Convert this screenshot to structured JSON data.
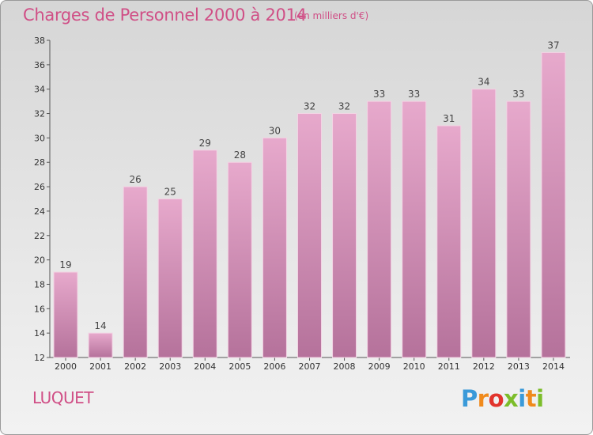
{
  "header": {
    "title": "Charges de Personnel 2000 à 2014",
    "subtitle": "(en milliers d'€)"
  },
  "footer": {
    "commune": "LUQUET",
    "logo_letters": [
      "P",
      "r",
      "o",
      "x",
      "i",
      "t",
      "i"
    ],
    "logo_colors": [
      "#3a9ad9",
      "#f08a1c",
      "#e2342c",
      "#7cbd2a",
      "#3a9ad9",
      "#f08a1c",
      "#7cbd2a"
    ]
  },
  "chart_data": {
    "type": "bar",
    "title": "Charges de Personnel 2000 à 2014",
    "subtitle": "(en milliers d'€)",
    "categories": [
      "2000",
      "2001",
      "2002",
      "2003",
      "2004",
      "2005",
      "2006",
      "2007",
      "2008",
      "2009",
      "2010",
      "2011",
      "2012",
      "2013",
      "2014"
    ],
    "values": [
      19,
      14,
      26,
      25,
      29,
      28,
      30,
      32,
      32,
      33,
      33,
      31,
      34,
      33,
      37
    ],
    "ylim": [
      12,
      38
    ],
    "yticks": [
      12,
      14,
      16,
      18,
      20,
      22,
      24,
      26,
      28,
      30,
      32,
      34,
      36,
      38
    ],
    "grid": false,
    "bar_color_top": "#e7a9cc",
    "bar_color_bottom": "#b5729b"
  }
}
